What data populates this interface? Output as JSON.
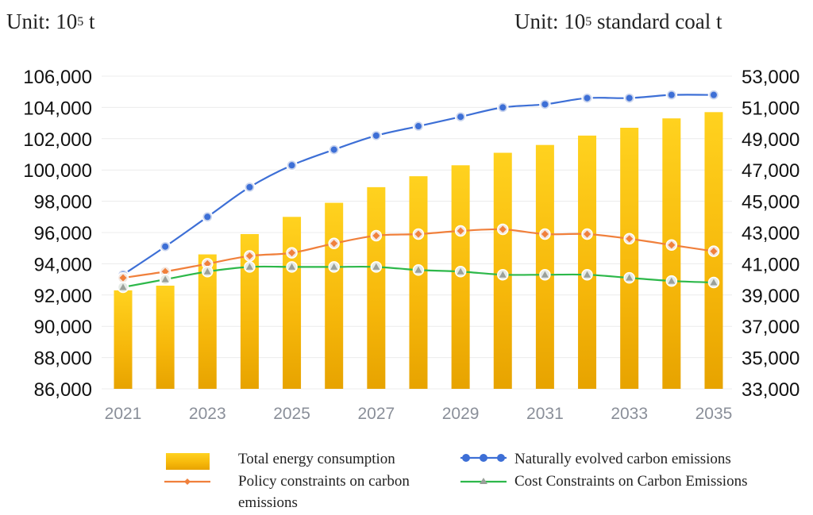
{
  "chart_data": {
    "type": "bar",
    "left_unit": {
      "prefix": "Unit: 10",
      "sup": "5",
      "suffix": " t"
    },
    "right_unit": {
      "prefix": "Unit: 10",
      "sup": "5",
      "suffix": " standard coal t"
    },
    "categories": [
      "2021",
      "2022",
      "2023",
      "2024",
      "2025",
      "2026",
      "2027",
      "2028",
      "2029",
      "2030",
      "2031",
      "2032",
      "2033",
      "2034",
      "2035"
    ],
    "x_tick_labels": [
      "2021",
      "2023",
      "2025",
      "2027",
      "2029",
      "2031",
      "2033",
      "2035"
    ],
    "ylim_left": [
      86000,
      106000
    ],
    "ylim_right": [
      33000,
      53000
    ],
    "y_ticks_left": [
      "86,000",
      "88,000",
      "90,000",
      "92,000",
      "94,000",
      "96,000",
      "98,000",
      "100,000",
      "102,000",
      "104,000",
      "106,000"
    ],
    "y_ticks_right": [
      "33,000",
      "35,000",
      "37,000",
      "39,000",
      "41,000",
      "43,000",
      "45,000",
      "47,000",
      "49,000",
      "51,000",
      "53,000"
    ],
    "grid": true,
    "bar_series": {
      "name": "Total energy consumption",
      "axis": "right",
      "color": "#F4B400",
      "values": [
        39300,
        39600,
        41600,
        42900,
        44000,
        44900,
        45900,
        46600,
        47300,
        48100,
        48600,
        49200,
        49700,
        50300,
        50700
      ]
    },
    "line_series": [
      {
        "name": "Naturally evolved carbon emissions",
        "axis": "left",
        "color": "#3D6FD6",
        "marker": "circle",
        "values": [
          93300,
          95100,
          97000,
          98900,
          100300,
          101300,
          102200,
          102800,
          103400,
          104000,
          104200,
          104600,
          104600,
          104800,
          104800
        ]
      },
      {
        "name": "Policy constraints on carbon emissions",
        "axis": "left",
        "color": "#F0803C",
        "marker": "diamond",
        "values": [
          93100,
          93500,
          94000,
          94500,
          94700,
          95300,
          95800,
          95900,
          96100,
          96200,
          95900,
          95900,
          95600,
          95200,
          94800
        ]
      },
      {
        "name": "Cost Constraints on Carbon Emissions",
        "axis": "left",
        "color": "#2DB84A",
        "marker": "triangle",
        "values": [
          92500,
          93000,
          93500,
          93800,
          93800,
          93800,
          93800,
          93600,
          93500,
          93300,
          93300,
          93300,
          93100,
          92900,
          92800
        ]
      }
    ],
    "legend": {
      "position": "bottom",
      "items": [
        {
          "label": "Total energy consumption",
          "type": "bar"
        },
        {
          "label": "Naturally evolved carbon emissions",
          "type": "circle-line"
        },
        {
          "label_lines": [
            "Policy constraints on carbon",
            "emissions"
          ],
          "type": "diamond-line"
        },
        {
          "label": "Cost Constraints on Carbon Emissions",
          "type": "triangle-line"
        }
      ]
    }
  }
}
